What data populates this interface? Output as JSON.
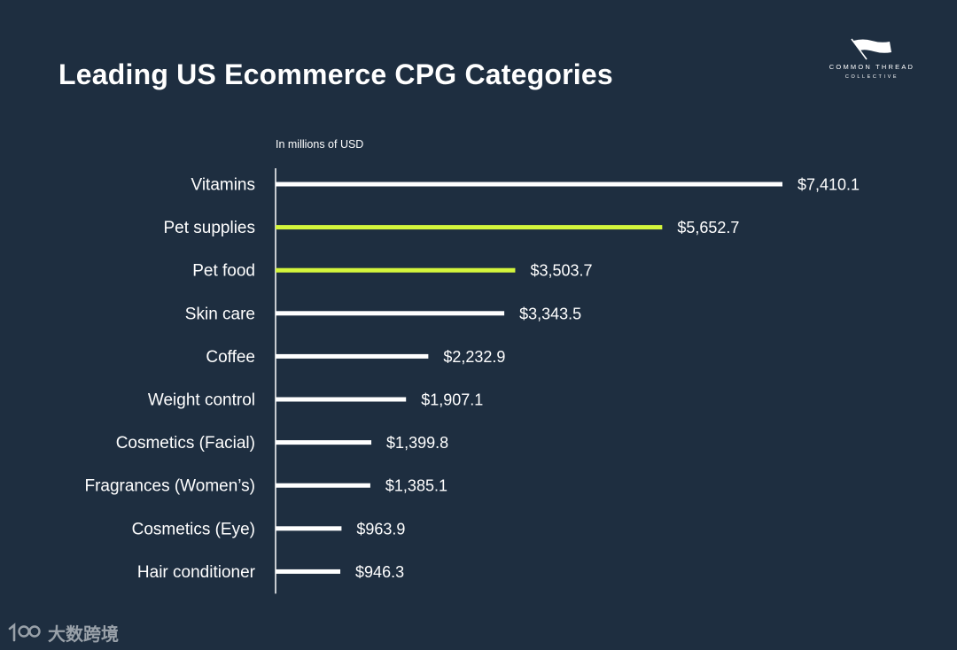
{
  "header": {
    "title": "Leading US Ecommerce CPG Categories"
  },
  "logo": {
    "main": "COMMON THREAD",
    "sub": "COLLECTIVE",
    "icon": "flag-icon"
  },
  "watermark": {
    "text": "大数跨境",
    "logo_text": "100"
  },
  "colors": {
    "background": "#1e2e40",
    "bar_default": "#ffffff",
    "bar_highlight": "#d4f53c",
    "text": "#ffffff"
  },
  "chart_data": {
    "type": "bar",
    "orientation": "horizontal",
    "title": "Leading US Ecommerce CPG Categories",
    "unit_label": "In millions of USD",
    "categories": [
      "Vitamins",
      "Pet supplies",
      "Pet food",
      "Skin care",
      "Coffee",
      "Weight control",
      "Cosmetics (Facial)",
      "Fragrances (Women’s)",
      "Cosmetics (Eye)",
      "Hair conditioner"
    ],
    "values": [
      7410.1,
      5652.7,
      3503.7,
      3343.5,
      2232.9,
      1907.1,
      1399.8,
      1385.1,
      963.9,
      946.3
    ],
    "value_labels": [
      "$7,410.1",
      "$5,652.7",
      "$3,503.7",
      "$3,343.5",
      "$2,232.9",
      "$1,907.1",
      "$1,399.8",
      "$1,385.1",
      "$963.9",
      "$946.3"
    ],
    "highlighted": [
      "Pet supplies",
      "Pet food"
    ],
    "grid": false,
    "legend": "none"
  }
}
